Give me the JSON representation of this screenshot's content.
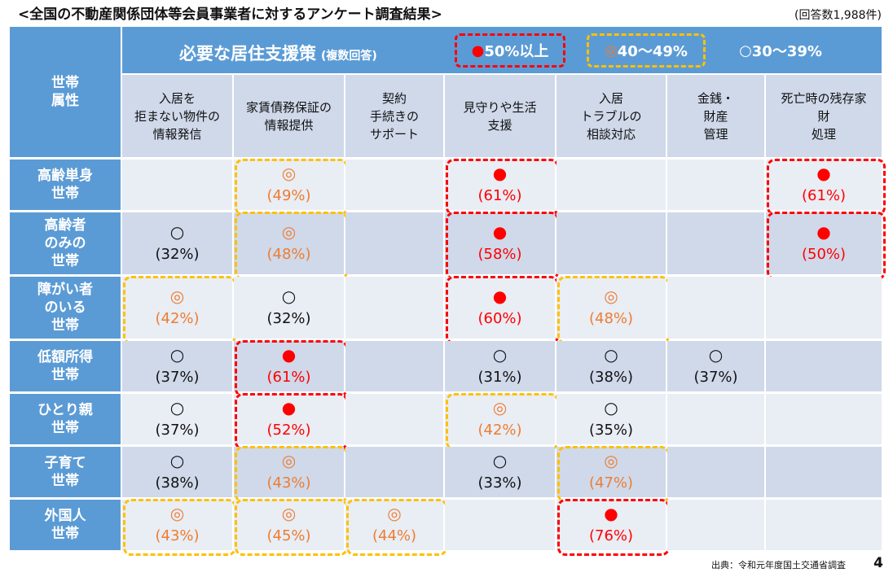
{
  "title": "<全国の不動産関係団体等会員事業者に対するアンケート調査結果>",
  "response_count": "(回答数1,988件)",
  "header": {
    "attribute_label": "世帯\n属性",
    "policy_title": "必要な居住支援策",
    "policy_note": "(複数回答)",
    "legend": [
      {
        "mark": "●",
        "label": "50%以上",
        "color": "#ff0000"
      },
      {
        "mark": "◎",
        "label": "40～49%",
        "color": "#ed7d31"
      },
      {
        "mark": "○",
        "label": "30～39%",
        "color": "#ffffff"
      }
    ]
  },
  "columns": [
    "入居を\n拒まない物件の\n情報発信",
    "家賃債務保証の\n情報提供",
    "契約\n手続きの\nサポート",
    "見守りや生活\n支援",
    "入居\nトラブルの\n相談対応",
    "金銭・\n財産\n管理",
    "死亡時の残存家\n財\n処理"
  ],
  "rows": [
    {
      "label": "高齢単身\n世帯",
      "cells": [
        null,
        {
          "mark": "◎",
          "pct": "(49%)"
        },
        null,
        {
          "mark": "●",
          "pct": "(61%)"
        },
        null,
        null,
        {
          "mark": "●",
          "pct": "(61%)"
        }
      ]
    },
    {
      "label": "高齢者\nのみの\n世帯",
      "cells": [
        {
          "mark": "○",
          "pct": "(32%)"
        },
        {
          "mark": "◎",
          "pct": "(48%)"
        },
        null,
        {
          "mark": "●",
          "pct": "(58%)"
        },
        null,
        null,
        {
          "mark": "●",
          "pct": "(50%)"
        }
      ]
    },
    {
      "label": "障がい者\nのいる\n世帯",
      "cells": [
        {
          "mark": "◎",
          "pct": "(42%)"
        },
        {
          "mark": "○",
          "pct": "(32%)"
        },
        null,
        {
          "mark": "●",
          "pct": "(60%)"
        },
        {
          "mark": "◎",
          "pct": "(48%)"
        },
        null,
        null
      ]
    },
    {
      "label": "低額所得\n世帯",
      "cells": [
        {
          "mark": "○",
          "pct": "(37%)"
        },
        {
          "mark": "●",
          "pct": "(61%)"
        },
        null,
        {
          "mark": "○",
          "pct": "(31%)"
        },
        {
          "mark": "○",
          "pct": "(38%)"
        },
        {
          "mark": "○",
          "pct": "(37%)"
        },
        null
      ]
    },
    {
      "label": "ひとり親\n世帯",
      "cells": [
        {
          "mark": "○",
          "pct": "(37%)"
        },
        {
          "mark": "●",
          "pct": "(52%)"
        },
        null,
        {
          "mark": "◎",
          "pct": "(42%)"
        },
        {
          "mark": "○",
          "pct": "(35%)"
        },
        null,
        null
      ]
    },
    {
      "label": "子育て\n世帯",
      "cells": [
        {
          "mark": "○",
          "pct": "(38%)"
        },
        {
          "mark": "◎",
          "pct": "(43%)"
        },
        null,
        {
          "mark": "○",
          "pct": "(33%)"
        },
        {
          "mark": "◎",
          "pct": "(47%)"
        },
        null,
        null
      ]
    },
    {
      "label": "外国人\n世帯",
      "cells": [
        {
          "mark": "◎",
          "pct": "(43%)"
        },
        {
          "mark": "◎",
          "pct": "(45%)"
        },
        {
          "mark": "◎",
          "pct": "(44%)"
        },
        null,
        {
          "mark": "●",
          "pct": "(76%)"
        },
        null,
        null
      ]
    }
  ],
  "source": "出典：令和元年度国土交通省調査",
  "page_number": "4"
}
